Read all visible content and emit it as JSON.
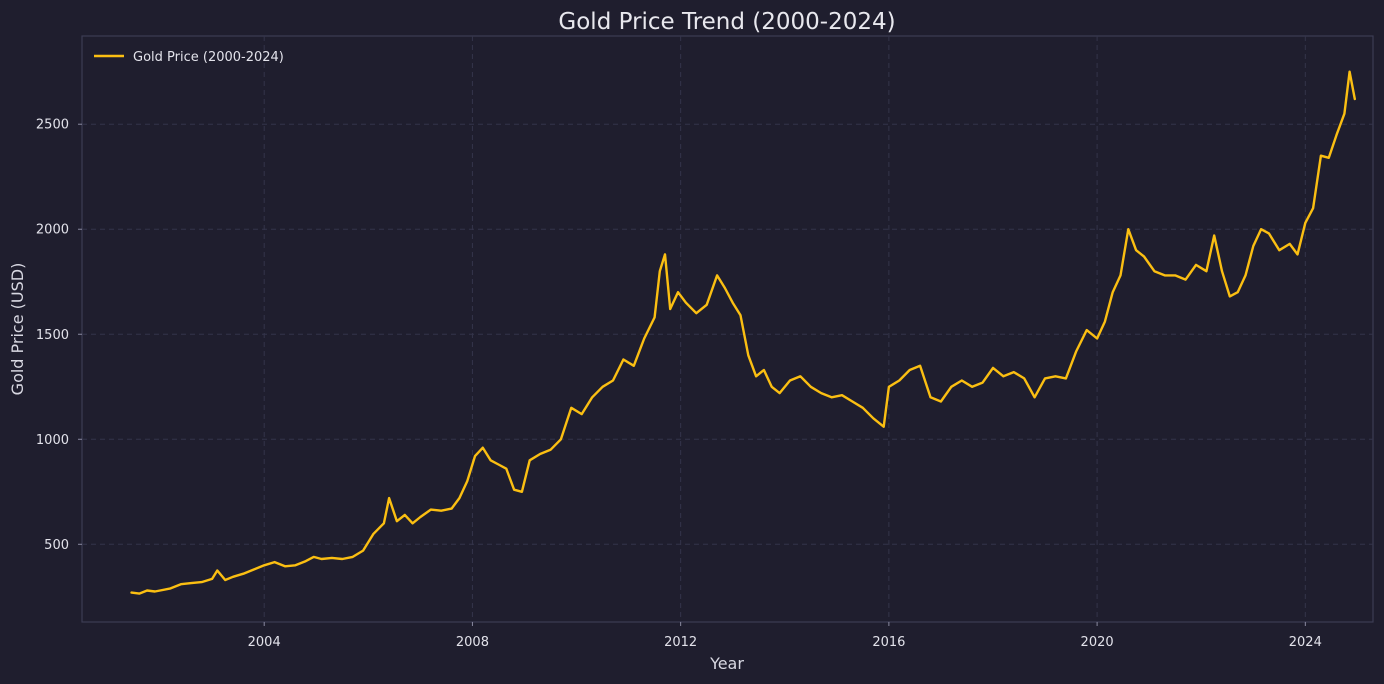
{
  "chart_data": {
    "type": "line",
    "title": "Gold Price Trend (2000-2024)",
    "xlabel": "Year",
    "ylabel": "Gold Price (USD)",
    "xlim": [
      2000.5,
      2025.3
    ],
    "ylim": [
      130,
      2920
    ],
    "x_ticks": [
      2004,
      2008,
      2012,
      2016,
      2020,
      2024
    ],
    "x_tick_labels": [
      "2004",
      "2008",
      "2012",
      "2016",
      "2020",
      "2024"
    ],
    "y_ticks": [
      500,
      1000,
      1500,
      2000,
      2500
    ],
    "y_tick_labels": [
      "500",
      "1000",
      "1500",
      "2000",
      "2500"
    ],
    "grid": true,
    "legend": {
      "position": "top-left",
      "entries": [
        "Gold Price (2000-2024)"
      ]
    },
    "series": [
      {
        "name": "Gold Price (2000-2024)",
        "color": "#fbbf12",
        "x": [
          2001.45,
          2001.6,
          2001.75,
          2001.9,
          2002.0,
          2002.2,
          2002.4,
          2002.6,
          2002.8,
          2003.0,
          2003.1,
          2003.25,
          2003.4,
          2003.6,
          2003.8,
          2004.0,
          2004.2,
          2004.4,
          2004.6,
          2004.8,
          2004.95,
          2005.1,
          2005.3,
          2005.5,
          2005.7,
          2005.9,
          2006.1,
          2006.3,
          2006.4,
          2006.55,
          2006.7,
          2006.85,
          2007.0,
          2007.2,
          2007.4,
          2007.6,
          2007.75,
          2007.9,
          2008.05,
          2008.2,
          2008.35,
          2008.5,
          2008.65,
          2008.8,
          2008.95,
          2009.1,
          2009.3,
          2009.5,
          2009.7,
          2009.9,
          2010.1,
          2010.3,
          2010.5,
          2010.7,
          2010.9,
          2011.1,
          2011.3,
          2011.5,
          2011.6,
          2011.7,
          2011.8,
          2011.95,
          2012.1,
          2012.3,
          2012.5,
          2012.7,
          2012.85,
          2013.0,
          2013.15,
          2013.3,
          2013.45,
          2013.6,
          2013.75,
          2013.9,
          2014.1,
          2014.3,
          2014.5,
          2014.7,
          2014.9,
          2015.1,
          2015.3,
          2015.5,
          2015.7,
          2015.9,
          2016.0,
          2016.2,
          2016.4,
          2016.6,
          2016.8,
          2017.0,
          2017.2,
          2017.4,
          2017.6,
          2017.8,
          2018.0,
          2018.2,
          2018.4,
          2018.6,
          2018.8,
          2019.0,
          2019.2,
          2019.4,
          2019.6,
          2019.8,
          2020.0,
          2020.15,
          2020.3,
          2020.45,
          2020.6,
          2020.75,
          2020.9,
          2021.1,
          2021.3,
          2021.5,
          2021.7,
          2021.9,
          2022.1,
          2022.25,
          2022.4,
          2022.55,
          2022.7,
          2022.85,
          2023.0,
          2023.15,
          2023.3,
          2023.5,
          2023.7,
          2023.85,
          2024.0,
          2024.15,
          2024.3,
          2024.45,
          2024.6,
          2024.75,
          2024.85,
          2024.95
        ],
        "y": [
          270,
          265,
          280,
          275,
          280,
          290,
          310,
          315,
          320,
          335,
          375,
          330,
          345,
          360,
          380,
          400,
          415,
          395,
          400,
          420,
          440,
          430,
          435,
          430,
          440,
          470,
          550,
          600,
          720,
          610,
          640,
          600,
          630,
          665,
          660,
          670,
          720,
          800,
          920,
          960,
          900,
          880,
          860,
          760,
          750,
          900,
          930,
          950,
          1000,
          1150,
          1120,
          1200,
          1250,
          1280,
          1380,
          1350,
          1480,
          1580,
          1800,
          1880,
          1620,
          1700,
          1650,
          1600,
          1640,
          1780,
          1720,
          1650,
          1590,
          1400,
          1300,
          1330,
          1250,
          1220,
          1280,
          1300,
          1250,
          1220,
          1200,
          1210,
          1180,
          1150,
          1100,
          1060,
          1250,
          1280,
          1330,
          1350,
          1200,
          1180,
          1250,
          1280,
          1250,
          1270,
          1340,
          1300,
          1320,
          1290,
          1200,
          1290,
          1300,
          1290,
          1420,
          1520,
          1480,
          1560,
          1700,
          1780,
          2000,
          1900,
          1870,
          1800,
          1780,
          1780,
          1760,
          1830,
          1800,
          1970,
          1800,
          1680,
          1700,
          1780,
          1920,
          2000,
          1980,
          1900,
          1930,
          1880,
          2030,
          2100,
          2350,
          2340,
          2450,
          2550,
          2750,
          2620
        ]
      }
    ]
  }
}
